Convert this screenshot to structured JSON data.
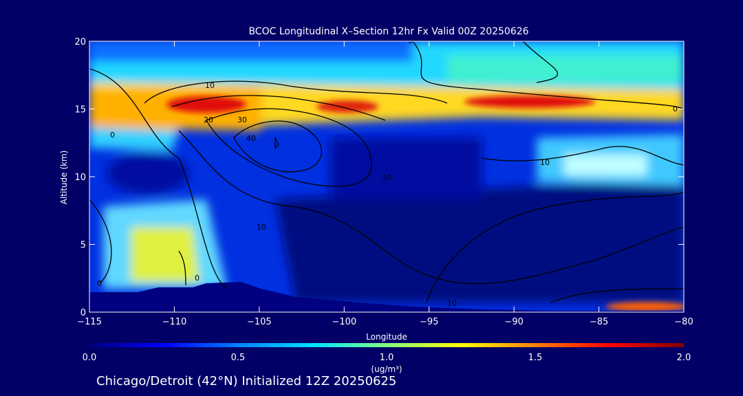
{
  "chart_data": {
    "type": "heatmap",
    "title": "BCOC Longitudinal X–Section 12hr  Fx Valid 00Z 20250626",
    "subtitle": "Chicago/Detroit (42°N) Initialized 12Z 20250625",
    "xlabel": "Longitude",
    "ylabel": "Altitude (km)",
    "xlim": [
      -115,
      -80
    ],
    "ylim": [
      0,
      20
    ],
    "x_ticks": [
      -115,
      -110,
      -105,
      -100,
      -95,
      -90,
      -85,
      -80
    ],
    "x_tick_labels": [
      "−115",
      "−110",
      "−105",
      "−100",
      "−95",
      "−90",
      "−85",
      "−80"
    ],
    "y_ticks": [
      0,
      5,
      10,
      15,
      20
    ],
    "y_tick_labels": [
      "0",
      "5",
      "10",
      "15",
      "20"
    ],
    "colorbar": {
      "min": 0.0,
      "max": 2.0,
      "ticks": [
        0.0,
        0.5,
        1.0,
        1.5,
        2.0
      ],
      "tick_labels": [
        "0.0",
        "0.5",
        "1.0",
        "1.5",
        "2.0"
      ],
      "unit_label": "(ug/m³)",
      "colormap": [
        "#000080",
        "#0000ff",
        "#0080ff",
        "#00e0ff",
        "#80ff80",
        "#ffff00",
        "#ff8000",
        "#ff0000",
        "#800000"
      ]
    },
    "concentration_features": [
      {
        "name": "upper layer",
        "lon_range": [
          -115,
          -80
        ],
        "alt_range": [
          13.5,
          17.5
        ],
        "value": 1.0
      },
      {
        "name": "maximum west",
        "lon": -107,
        "alt": 15.3,
        "value": 1.8
      },
      {
        "name": "maximum central",
        "lon": -100,
        "alt": 15.1,
        "value": 1.75
      },
      {
        "name": "maximum east",
        "lon": -89,
        "alt": 15.5,
        "value": 1.8
      },
      {
        "name": "upper band top",
        "lon_range": [
          -115,
          -80
        ],
        "alt_range": [
          17.5,
          20
        ],
        "value": 0.55
      },
      {
        "name": "eastern mid plume",
        "lon": -82,
        "alt": 11,
        "value": 0.7
      },
      {
        "name": "low plume west",
        "lon": -111,
        "alt": 3,
        "value": 0.9
      },
      {
        "name": "surface east",
        "lon": -83,
        "alt": 0.3,
        "value": 1.7
      }
    ],
    "contour_labels": [
      "0",
      "10",
      "20",
      "30",
      "40",
      "30",
      "10",
      "10",
      "0",
      "0",
      "0",
      "10",
      "0"
    ],
    "terrain_color": "#000080",
    "background_color": "#000066",
    "contour_color": "#000000"
  }
}
